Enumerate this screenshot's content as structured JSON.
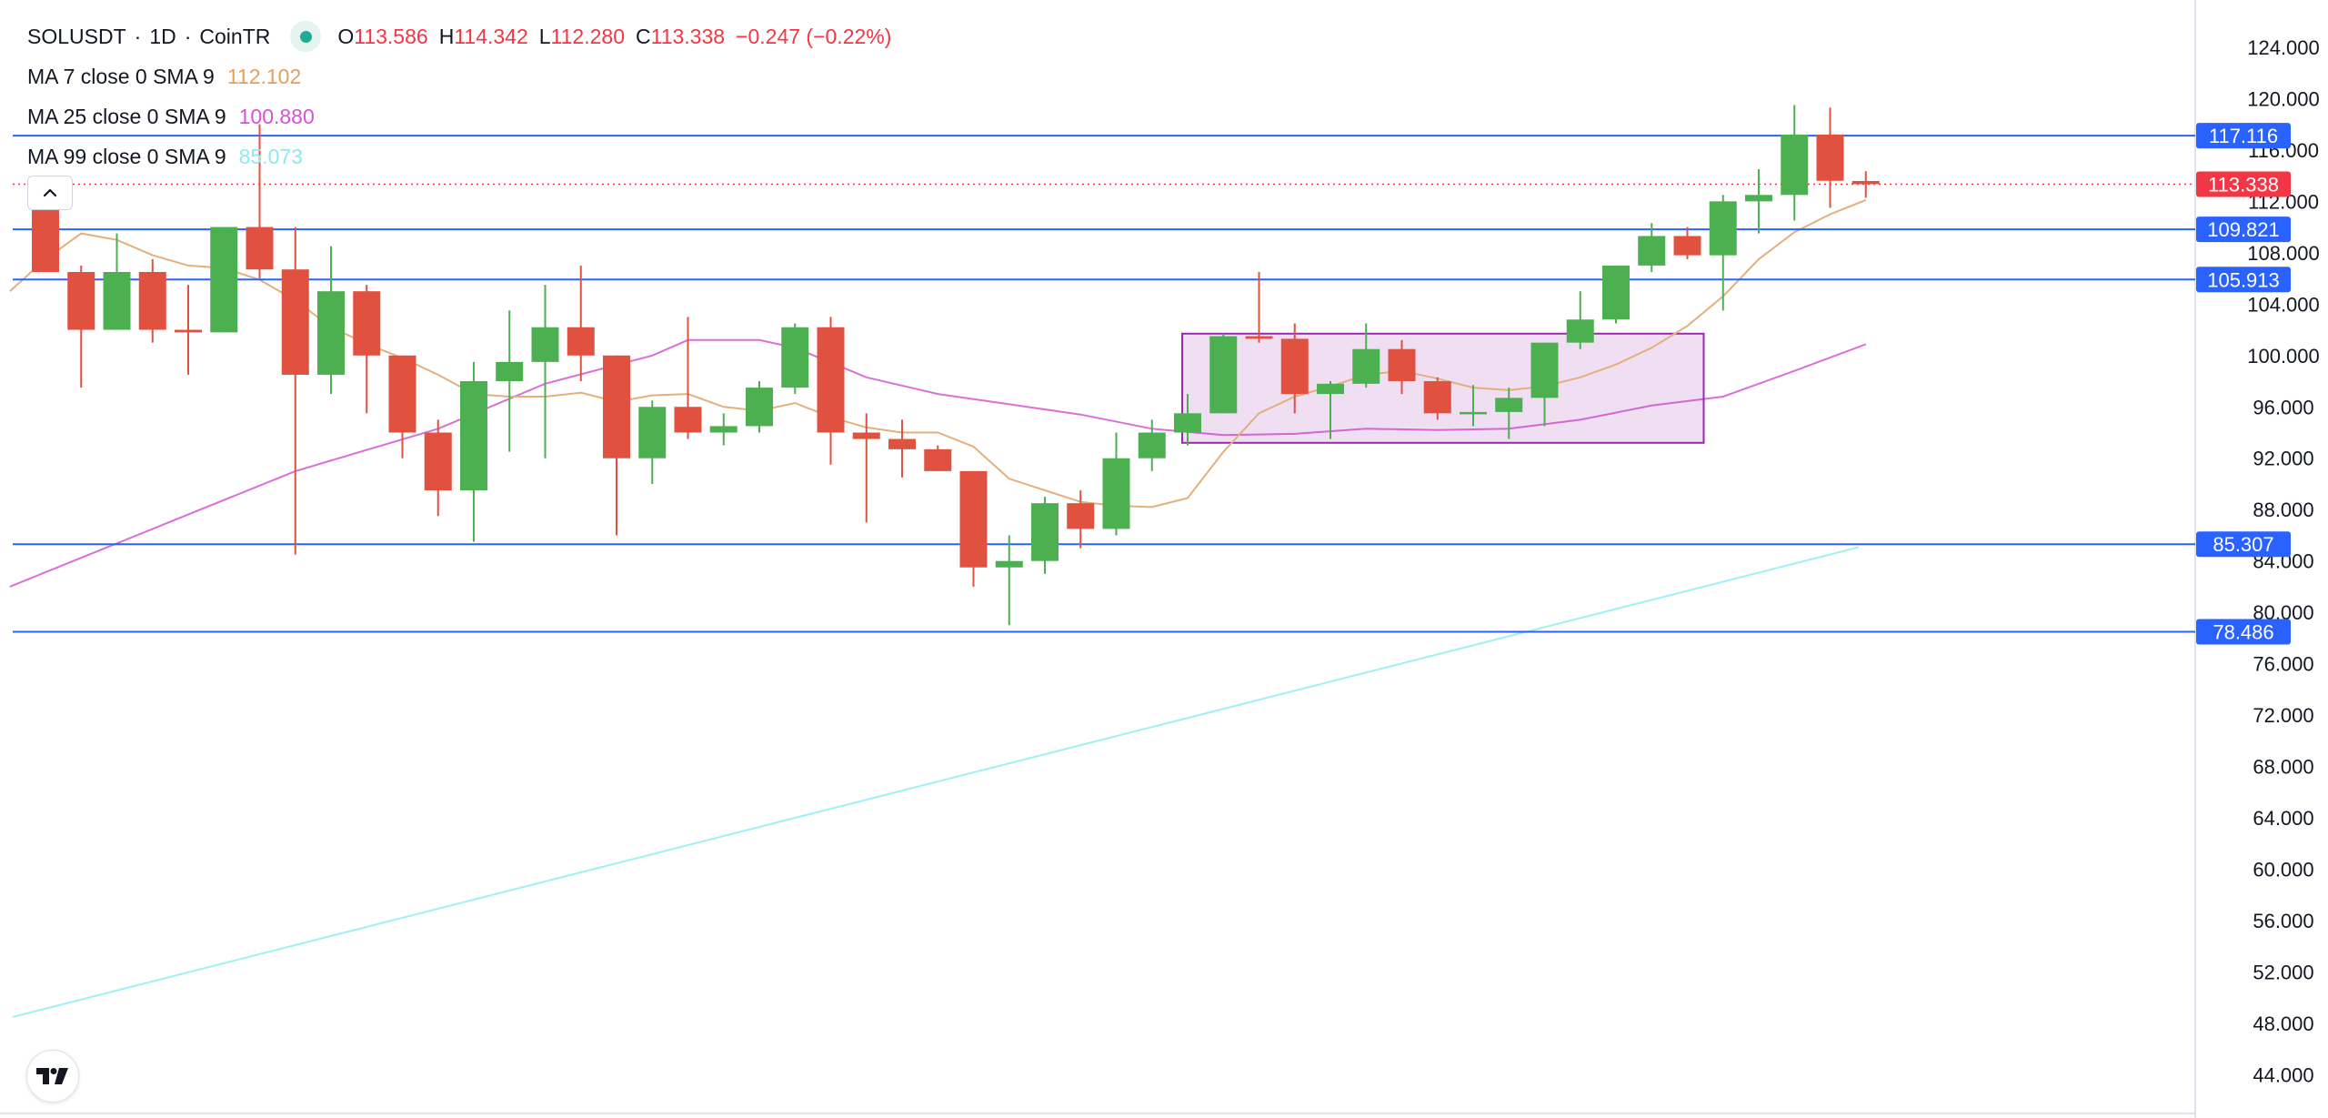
{
  "header": {
    "symbol": "SOLUSDT",
    "sep1": "·",
    "interval": "1D",
    "sep2": "·",
    "exchange": "CoinTR",
    "ohlc": {
      "o_key": "O",
      "o_val": "113.586",
      "h_key": "H",
      "h_val": "114.342",
      "l_key": "L",
      "l_val": "112.280",
      "c_key": "C",
      "c_val": "113.338",
      "change": "−0.247 (−0.22%)"
    }
  },
  "indicators": [
    {
      "label": "MA 7 close 0 SMA 9",
      "value": "112.102",
      "color": "#e3a05c"
    },
    {
      "label": "MA 25 close 0 SMA 9",
      "value": "100.880",
      "color": "#d752d6"
    },
    {
      "label": "MA 99 close 0 SMA 9",
      "value": "85.073",
      "color": "#8fe8f0"
    }
  ],
  "colors": {
    "up": "#4caf50",
    "down": "#e05140",
    "hline": "#2962ff",
    "box_fill": "rgba(171,71,188,0.18)",
    "box_stroke": "#9c27b0",
    "price_line": "#f23645"
  },
  "icons": {
    "collapse": "chevron-up-icon",
    "logo": "tradingview-logo-icon",
    "status": "status-dot-icon"
  },
  "chart_data": {
    "type": "candlestick",
    "symbol": "SOLUSDT",
    "interval": "1D",
    "y_axis": {
      "ticks": [
        "124.000",
        "120.000",
        "116.000",
        "112.000",
        "108.000",
        "104.000",
        "100.000",
        "96.000",
        "92.000",
        "88.000",
        "84.000",
        "80.000",
        "76.000",
        "72.000",
        "68.000",
        "64.000",
        "60.000",
        "56.000",
        "52.000",
        "48.000",
        "44.000"
      ],
      "tick_values": [
        124,
        120,
        116,
        112,
        108,
        104,
        100,
        96,
        92,
        88,
        84,
        80,
        76,
        72,
        68,
        64,
        60,
        56,
        52,
        48,
        44
      ],
      "range": [
        42.5,
        126
      ]
    },
    "candles": [
      {
        "o": 112.0,
        "h": 114.0,
        "l": 106.5,
        "c": 106.5
      },
      {
        "o": 106.5,
        "h": 107.0,
        "l": 97.5,
        "c": 102.0
      },
      {
        "o": 102.0,
        "h": 109.5,
        "l": 102.0,
        "c": 106.5
      },
      {
        "o": 106.5,
        "h": 107.5,
        "l": 101.0,
        "c": 102.0
      },
      {
        "o": 102.0,
        "h": 105.5,
        "l": 98.5,
        "c": 101.8
      },
      {
        "o": 101.8,
        "h": 110.0,
        "l": 101.8,
        "c": 110.0
      },
      {
        "o": 110.0,
        "h": 118.0,
        "l": 106.0,
        "c": 106.7
      },
      {
        "o": 106.7,
        "h": 110.0,
        "l": 84.5,
        "c": 98.5
      },
      {
        "o": 98.5,
        "h": 108.5,
        "l": 97.0,
        "c": 105.0
      },
      {
        "o": 105.0,
        "h": 105.5,
        "l": 95.5,
        "c": 100.0
      },
      {
        "o": 100.0,
        "h": 100.0,
        "l": 92.0,
        "c": 94.0
      },
      {
        "o": 94.0,
        "h": 95.0,
        "l": 87.5,
        "c": 89.5
      },
      {
        "o": 89.5,
        "h": 99.5,
        "l": 85.5,
        "c": 98.0
      },
      {
        "o": 98.0,
        "h": 103.5,
        "l": 92.5,
        "c": 99.5
      },
      {
        "o": 99.5,
        "h": 105.5,
        "l": 92.0,
        "c": 102.2
      },
      {
        "o": 102.2,
        "h": 107.0,
        "l": 98.0,
        "c": 100.0
      },
      {
        "o": 100.0,
        "h": 100.0,
        "l": 86.0,
        "c": 92.0
      },
      {
        "o": 92.0,
        "h": 96.5,
        "l": 90.0,
        "c": 96.0
      },
      {
        "o": 96.0,
        "h": 103.0,
        "l": 93.5,
        "c": 94.0
      },
      {
        "o": 94.0,
        "h": 95.5,
        "l": 93.0,
        "c": 94.5
      },
      {
        "o": 94.5,
        "h": 98.0,
        "l": 94.0,
        "c": 97.5
      },
      {
        "o": 97.5,
        "h": 102.5,
        "l": 97.0,
        "c": 102.2
      },
      {
        "o": 102.2,
        "h": 103.0,
        "l": 91.5,
        "c": 94.0
      },
      {
        "o": 94.0,
        "h": 95.5,
        "l": 87.0,
        "c": 93.5
      },
      {
        "o": 93.5,
        "h": 95.0,
        "l": 90.5,
        "c": 92.7
      },
      {
        "o": 92.7,
        "h": 93.0,
        "l": 91.0,
        "c": 91.0
      },
      {
        "o": 91.0,
        "h": 91.0,
        "l": 82.0,
        "c": 83.5
      },
      {
        "o": 83.5,
        "h": 86.0,
        "l": 79.0,
        "c": 84.0
      },
      {
        "o": 84.0,
        "h": 89.0,
        "l": 83.0,
        "c": 88.5
      },
      {
        "o": 88.5,
        "h": 89.5,
        "l": 85.0,
        "c": 86.5
      },
      {
        "o": 86.5,
        "h": 94.0,
        "l": 86.0,
        "c": 92.0
      },
      {
        "o": 92.0,
        "h": 95.0,
        "l": 91.0,
        "c": 94.0
      },
      {
        "o": 94.0,
        "h": 97.0,
        "l": 93.0,
        "c": 95.5
      },
      {
        "o": 95.5,
        "h": 101.7,
        "l": 95.5,
        "c": 101.5
      },
      {
        "o": 101.5,
        "h": 106.5,
        "l": 101.0,
        "c": 101.3
      },
      {
        "o": 101.3,
        "h": 102.5,
        "l": 95.5,
        "c": 97.0
      },
      {
        "o": 97.0,
        "h": 98.0,
        "l": 93.5,
        "c": 97.8
      },
      {
        "o": 97.8,
        "h": 102.5,
        "l": 97.5,
        "c": 100.5
      },
      {
        "o": 100.5,
        "h": 101.2,
        "l": 97.0,
        "c": 98.0
      },
      {
        "o": 98.0,
        "h": 98.3,
        "l": 95.0,
        "c": 95.5
      },
      {
        "o": 95.5,
        "h": 97.7,
        "l": 94.5,
        "c": 95.6
      },
      {
        "o": 95.6,
        "h": 97.5,
        "l": 93.5,
        "c": 96.7
      },
      {
        "o": 96.7,
        "h": 101.0,
        "l": 94.5,
        "c": 101.0
      },
      {
        "o": 101.0,
        "h": 105.0,
        "l": 100.5,
        "c": 102.8
      },
      {
        "o": 102.8,
        "h": 107.0,
        "l": 102.5,
        "c": 107.0
      },
      {
        "o": 107.0,
        "h": 110.3,
        "l": 106.5,
        "c": 109.3
      },
      {
        "o": 109.3,
        "h": 110.0,
        "l": 107.5,
        "c": 107.8
      },
      {
        "o": 107.8,
        "h": 112.5,
        "l": 103.5,
        "c": 112.0
      },
      {
        "o": 112.0,
        "h": 114.5,
        "l": 109.5,
        "c": 112.5
      },
      {
        "o": 112.5,
        "h": 119.5,
        "l": 110.5,
        "c": 117.2
      },
      {
        "o": 117.2,
        "h": 119.3,
        "l": 111.5,
        "c": 113.6
      },
      {
        "o": 113.586,
        "h": 114.342,
        "l": 112.28,
        "c": 113.338
      }
    ],
    "ma7": [
      null,
      null,
      null,
      null,
      null,
      null,
      107.0,
      105.9,
      104.3,
      102.2,
      100.9,
      98.8,
      96.6,
      96.8,
      96.8,
      97.1,
      96.4,
      96.9,
      97.0,
      96.0,
      95.7,
      96.3,
      95.2,
      94.4,
      94.0,
      94.0,
      92.9,
      90.4,
      89.5,
      88.6,
      88.3,
      88.2,
      88.9,
      90.7,
      93.8,
      95.6,
      97.6,
      99.2,
      100.1,
      100.2,
      99.8,
      99.4,
      99.7,
      100.3,
      101.3,
      102.2,
      103.4,
      105.0,
      107.0,
      109.3,
      110.9,
      112.1
    ],
    "ma25": [
      null,
      null,
      null,
      null,
      null,
      null,
      null,
      null,
      null,
      null,
      null,
      null,
      null,
      null,
      null,
      null,
      null,
      null,
      null,
      null,
      null,
      null,
      null,
      null,
      null,
      null,
      null,
      null,
      null,
      null,
      null,
      null,
      null,
      null,
      null,
      null,
      null,
      null,
      null,
      null,
      null,
      null,
      null,
      null,
      null,
      null,
      null,
      null,
      null,
      null,
      null,
      100.88
    ],
    "horizontal_levels": [
      {
        "value": 117.116,
        "label": "117.116"
      },
      {
        "value": 109.821,
        "label": "109.821"
      },
      {
        "value": 105.913,
        "label": "105.913"
      },
      {
        "value": 85.307,
        "label": "85.307"
      },
      {
        "value": 78.486,
        "label": "78.486"
      }
    ],
    "last_price": {
      "value": 113.338,
      "label": "113.338"
    },
    "range_box": {
      "from_index": 32,
      "to_index": 46,
      "top": 101.7,
      "bottom": 93.2
    }
  }
}
